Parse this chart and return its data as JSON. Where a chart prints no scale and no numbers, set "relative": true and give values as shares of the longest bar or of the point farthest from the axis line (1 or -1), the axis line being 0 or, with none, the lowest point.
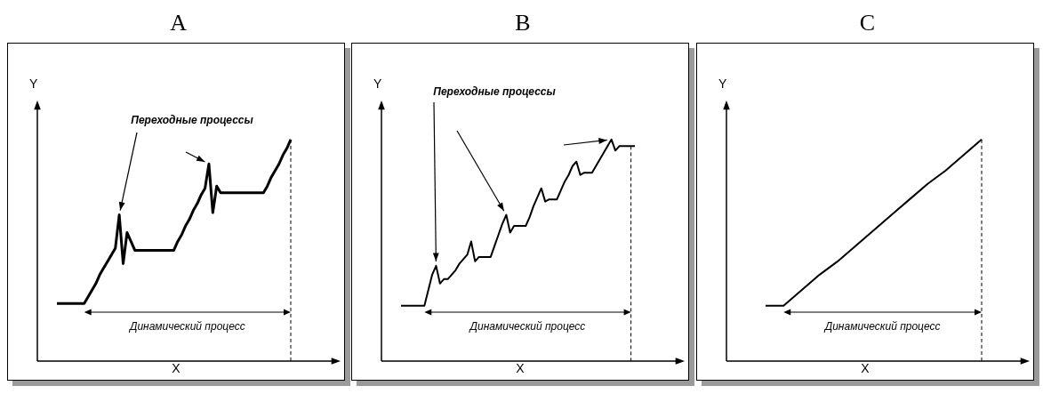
{
  "chart_data": [
    {
      "type": "line",
      "title": "A",
      "xlabel": "X",
      "ylabel": "Y",
      "relative": true,
      "annotations": [
        "Переходные процессы",
        "Динамический процесс"
      ],
      "categories": [
        null,
        null,
        null,
        null,
        null,
        null,
        null,
        null,
        null,
        null,
        null,
        null,
        null,
        null,
        null,
        null,
        null,
        null,
        null,
        null,
        null,
        null,
        null,
        null,
        null,
        null,
        null,
        null,
        null,
        null,
        null,
        null,
        null,
        null,
        null,
        null,
        null,
        null,
        null,
        null,
        null,
        null,
        null,
        null,
        null,
        null,
        null,
        null,
        null,
        null,
        null,
        null,
        null,
        null,
        null,
        null,
        null,
        null,
        null,
        null,
        null
      ],
      "series": [
        {
          "color": "#000000",
          "values": [
            0.26,
            0.26,
            0.26,
            0.26,
            0.26,
            0.26,
            0.26,
            0.26,
            0.29,
            0.32,
            0.35,
            0.39,
            0.42,
            0.45,
            0.48,
            0.51,
            0.66,
            0.44,
            0.58,
            0.54,
            0.5,
            0.5,
            0.5,
            0.5,
            0.5,
            0.5,
            0.5,
            0.5,
            0.5,
            0.5,
            0.5,
            0.54,
            0.57,
            0.61,
            0.64,
            0.68,
            0.71,
            0.75,
            0.78,
            0.89,
            0.67,
            0.79,
            0.76,
            0.76,
            0.76,
            0.76,
            0.76,
            0.76,
            0.76,
            0.76,
            0.76,
            0.76,
            0.76,
            0.76,
            0.79,
            0.83,
            0.86,
            0.89,
            0.93,
            0.96,
            1.0
          ]
        }
      ]
    },
    {
      "type": "line",
      "title": "B",
      "xlabel": "X",
      "ylabel": "Y",
      "relative": true,
      "annotations": [
        "Переходные процессы",
        "Динамический процесс"
      ],
      "categories": [
        null,
        null,
        null,
        null,
        null,
        null,
        null,
        null,
        null,
        null,
        null,
        null,
        null,
        null,
        null,
        null,
        null,
        null,
        null,
        null,
        null,
        null,
        null,
        null,
        null,
        null,
        null,
        null,
        null,
        null,
        null,
        null,
        null,
        null,
        null,
        null,
        null,
        null,
        null,
        null,
        null,
        null,
        null,
        null,
        null,
        null,
        null,
        null,
        null,
        null,
        null,
        null,
        null,
        null,
        null,
        null,
        null,
        null,
        null,
        null,
        null
      ],
      "series": [
        {
          "color": "#000000",
          "values": [
            0.25,
            0.25,
            0.25,
            0.25,
            0.25,
            0.25,
            0.25,
            0.32,
            0.39,
            0.43,
            0.35,
            0.37,
            0.37,
            0.39,
            0.41,
            0.44,
            0.46,
            0.48,
            0.54,
            0.45,
            0.47,
            0.47,
            0.47,
            0.47,
            0.52,
            0.57,
            0.62,
            0.66,
            0.58,
            0.61,
            0.61,
            0.61,
            0.61,
            0.65,
            0.7,
            0.74,
            0.78,
            0.72,
            0.73,
            0.73,
            0.73,
            0.77,
            0.81,
            0.84,
            0.88,
            0.9,
            0.84,
            0.85,
            0.85,
            0.85,
            0.88,
            0.91,
            0.94,
            0.97,
            1.0,
            0.95,
            0.97,
            0.97,
            0.97,
            0.97,
            0.97
          ]
        }
      ]
    },
    {
      "type": "line",
      "title": "C",
      "xlabel": "X",
      "ylabel": "Y",
      "relative": true,
      "annotations": [
        "Динамический процесс"
      ],
      "categories": [
        null,
        null,
        null,
        null,
        null,
        null,
        null,
        null,
        null,
        null,
        null,
        null,
        null
      ],
      "series": [
        {
          "color": "#000000",
          "values": [
            0.25,
            0.25,
            0.32,
            0.39,
            0.45,
            0.52,
            0.59,
            0.66,
            0.73,
            0.8,
            0.86,
            0.93,
            1.0
          ]
        }
      ]
    }
  ]
}
